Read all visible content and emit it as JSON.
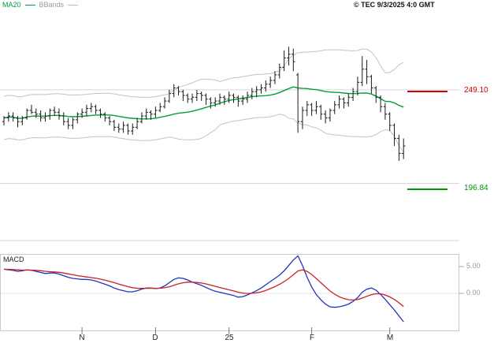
{
  "legend": {
    "ma20": {
      "label": "MA20",
      "color": "#00a040"
    },
    "bbands": {
      "label": "BBands",
      "color": "#aaaaaa"
    }
  },
  "copyright": "© TEC 9/3/2025 4:0 GMT",
  "price_pane": {
    "levels": [
      {
        "name": "resistance",
        "label": "249.10",
        "value": 249.1,
        "color": "#cc0000"
      },
      {
        "name": "support",
        "label": "196.84",
        "value": 196.84,
        "color": "#009900"
      }
    ],
    "gridline_prices": [
      250,
      200
    ]
  },
  "macd_pane": {
    "label": "MACD",
    "scale": [
      {
        "label": "5.00",
        "value": 5
      },
      {
        "label": "0.00",
        "value": 0
      }
    ]
  },
  "x_axis": {
    "ticks": [
      {
        "label": "N",
        "index": 17
      },
      {
        "label": "D",
        "index": 33
      },
      {
        "label": "25",
        "index": 49
      },
      {
        "label": "F",
        "index": 67
      },
      {
        "label": "M",
        "index": 84
      }
    ]
  },
  "chart_data": [
    {
      "type": "candlestick",
      "name": "daily-price-with-bollinger-bands",
      "title": "",
      "x_tick_labels": [
        "N",
        "D",
        "25",
        "F",
        "M"
      ],
      "x_tick_indices": [
        17,
        33,
        49,
        67,
        84
      ],
      "y_gridlines": [
        250,
        200
      ],
      "visible_price_range": [
        169,
        298
      ],
      "levels": [
        {
          "label": "249.10",
          "value": 249.1,
          "color": "#cc0000"
        },
        {
          "label": "196.84",
          "value": 196.84,
          "color": "#009900"
        }
      ],
      "overlays": [
        "MA20",
        "BBands(20,2)"
      ],
      "ohlc": [
        [
          233,
          236,
          231,
          235
        ],
        [
          235,
          238,
          233,
          236
        ],
        [
          236,
          238,
          233,
          235
        ],
        [
          235,
          236,
          230,
          233
        ],
        [
          233,
          236,
          231,
          235
        ],
        [
          235,
          240,
          234,
          239
        ],
        [
          239,
          242,
          237,
          238
        ],
        [
          238,
          240,
          235,
          237
        ],
        [
          237,
          239,
          233,
          235
        ],
        [
          235,
          238,
          233,
          236
        ],
        [
          236,
          240,
          234,
          239
        ],
        [
          239,
          241,
          236,
          238
        ],
        [
          238,
          240,
          234,
          236
        ],
        [
          236,
          238,
          231,
          233
        ],
        [
          233,
          235,
          229,
          231
        ],
        [
          231,
          235,
          229,
          234
        ],
        [
          234,
          238,
          232,
          237
        ],
        [
          237,
          240,
          235,
          238
        ],
        [
          238,
          242,
          236,
          240
        ],
        [
          240,
          243,
          238,
          241
        ],
        [
          241,
          242,
          237,
          239
        ],
        [
          239,
          240,
          235,
          237
        ],
        [
          237,
          238,
          233,
          235
        ],
        [
          235,
          236,
          231,
          233
        ],
        [
          233,
          234,
          228,
          230
        ],
        [
          230,
          232,
          227,
          229
        ],
        [
          229,
          233,
          227,
          231
        ],
        [
          231,
          232,
          226,
          228
        ],
        [
          228,
          232,
          226,
          230
        ],
        [
          230,
          235,
          229,
          233
        ],
        [
          233,
          238,
          232,
          236
        ],
        [
          236,
          240,
          234,
          238
        ],
        [
          238,
          239,
          234,
          237
        ],
        [
          237,
          241,
          235,
          239
        ],
        [
          239,
          243,
          238,
          241
        ],
        [
          241,
          246,
          240,
          244
        ],
        [
          244,
          250,
          243,
          248
        ],
        [
          248,
          253,
          246,
          251
        ],
        [
          251,
          252,
          247,
          249
        ],
        [
          249,
          250,
          244,
          247
        ],
        [
          247,
          248,
          243,
          245
        ],
        [
          245,
          248,
          243,
          246
        ],
        [
          246,
          250,
          244,
          248
        ],
        [
          248,
          249,
          244,
          247
        ],
        [
          247,
          248,
          242,
          245
        ],
        [
          245,
          246,
          240,
          243
        ],
        [
          243,
          246,
          241,
          244
        ],
        [
          244,
          248,
          242,
          246
        ],
        [
          246,
          247,
          242,
          245
        ],
        [
          245,
          249,
          243,
          247
        ],
        [
          247,
          248,
          243,
          246
        ],
        [
          246,
          247,
          241,
          244
        ],
        [
          244,
          247,
          242,
          245
        ],
        [
          245,
          249,
          243,
          247
        ],
        [
          247,
          251,
          245,
          249
        ],
        [
          249,
          252,
          246,
          250
        ],
        [
          250,
          253,
          248,
          251
        ],
        [
          251,
          255,
          249,
          253
        ],
        [
          253,
          257,
          251,
          255
        ],
        [
          255,
          260,
          253,
          258
        ],
        [
          258,
          264,
          256,
          262
        ],
        [
          262,
          271,
          260,
          267
        ],
        [
          267,
          273,
          263,
          269
        ],
        [
          269,
          272,
          260,
          265
        ],
        [
          258,
          259,
          227,
          233
        ],
        [
          233,
          241,
          229,
          239
        ],
        [
          239,
          244,
          236,
          242
        ],
        [
          242,
          243,
          236,
          239
        ],
        [
          239,
          244,
          237,
          241
        ],
        [
          241,
          242,
          234,
          237
        ],
        [
          237,
          239,
          232,
          235
        ],
        [
          235,
          240,
          233,
          239
        ],
        [
          239,
          244,
          237,
          242
        ],
        [
          242,
          247,
          240,
          245
        ],
        [
          245,
          246,
          240,
          243
        ],
        [
          243,
          248,
          241,
          246
        ],
        [
          246,
          251,
          244,
          249
        ],
        [
          249,
          257,
          247,
          254
        ],
        [
          254,
          268,
          252,
          261
        ],
        [
          261,
          266,
          253,
          257
        ],
        [
          257,
          258,
          248,
          251
        ],
        [
          251,
          252,
          243,
          246
        ],
        [
          246,
          247,
          238,
          241
        ],
        [
          241,
          243,
          234,
          237
        ],
        [
          237,
          238,
          228,
          231
        ],
        [
          231,
          232,
          220,
          224
        ],
        [
          224,
          226,
          212,
          216
        ],
        [
          216,
          224,
          213,
          220
        ]
      ]
    },
    {
      "type": "line",
      "name": "MACD",
      "y_ticks": [
        5,
        0
      ],
      "series": [
        {
          "name": "macd",
          "color": "#2233bb",
          "values": [
            4.5,
            4.4,
            4.3,
            4.1,
            4.2,
            4.4,
            4.3,
            4.1,
            3.9,
            3.7,
            3.8,
            3.8,
            3.6,
            3.3,
            3.0,
            2.8,
            2.7,
            2.6,
            2.6,
            2.5,
            2.3,
            2.0,
            1.7,
            1.4,
            1.0,
            0.7,
            0.5,
            0.3,
            0.3,
            0.5,
            0.8,
            1.0,
            1.0,
            0.9,
            1.0,
            1.4,
            2.0,
            2.6,
            2.9,
            2.8,
            2.5,
            2.1,
            1.8,
            1.5,
            1.1,
            0.7,
            0.4,
            0.2,
            0.0,
            -0.2,
            -0.4,
            -0.7,
            -0.6,
            -0.3,
            0.1,
            0.5,
            1.0,
            1.6,
            2.2,
            2.8,
            3.4,
            4.2,
            5.2,
            6.2,
            7.0,
            5.2,
            3.0,
            1.2,
            -0.2,
            -1.2,
            -2.0,
            -2.5,
            -2.6,
            -2.5,
            -2.3,
            -2.0,
            -1.5,
            -0.8,
            0.2,
            0.8,
            1.0,
            0.6,
            -0.2,
            -1.1,
            -2.1,
            -3.1,
            -4.2,
            -5.3
          ]
        },
        {
          "name": "signal",
          "color": "#cc2222",
          "derivation": "EMA9(macd)"
        }
      ]
    }
  ]
}
